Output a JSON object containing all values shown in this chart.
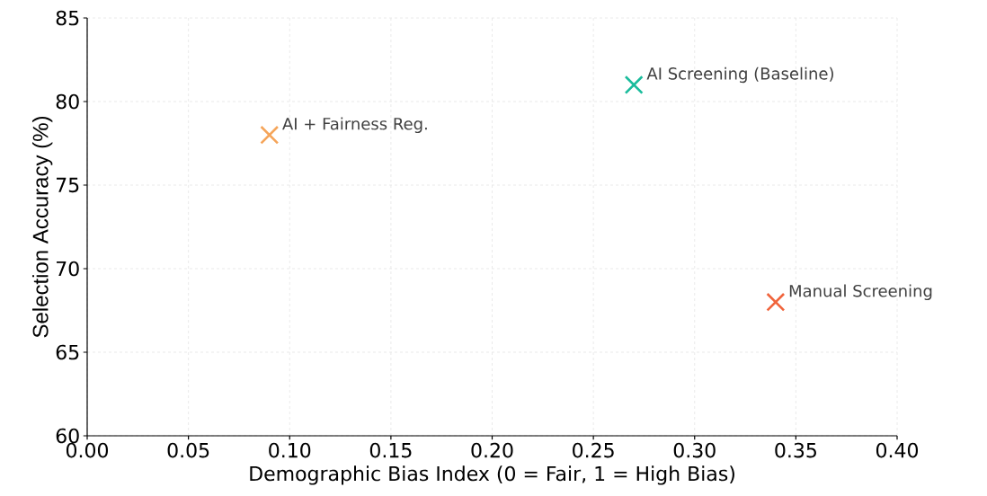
{
  "chart_data": {
    "type": "scatter",
    "xlabel": "Demographic Bias Index (0 = Fair, 1 = High Bias)",
    "ylabel": "Selection Accuracy (%)",
    "series": [
      {
        "name": "AI + Fairness Reg.",
        "color": "#f5a55a",
        "x": [
          0.09
        ],
        "values": [
          78
        ]
      },
      {
        "name": "AI Screening (Baseline)",
        "color": "#1abc9c",
        "x": [
          0.27
        ],
        "values": [
          81
        ]
      },
      {
        "name": "Manual Screening",
        "color": "#f0643c",
        "x": [
          0.34
        ],
        "values": [
          68
        ]
      }
    ],
    "xlim": [
      0,
      0.4
    ],
    "ylim": [
      60,
      85
    ],
    "xticks": [
      {
        "value": 0,
        "label": "0.00"
      },
      0.05,
      {
        "value": 0.1,
        "label": "0.10"
      },
      0.15,
      {
        "value": 0.2,
        "label": "0.20"
      },
      0.25,
      {
        "value": 0.3,
        "label": "0.30"
      },
      0.35,
      {
        "value": 0.4,
        "label": "0.40"
      }
    ],
    "yticks": [
      60,
      65,
      70,
      75,
      80,
      85
    ],
    "grid": true,
    "marker": "cross",
    "legend": false
  }
}
